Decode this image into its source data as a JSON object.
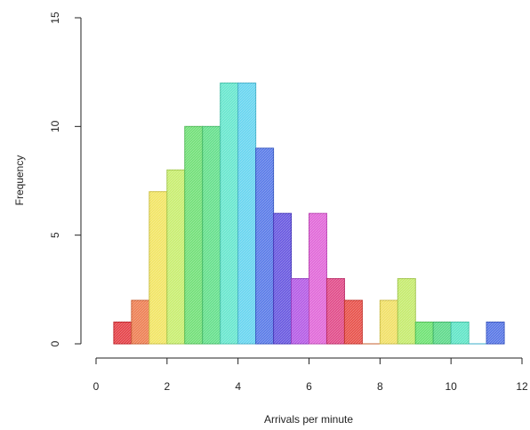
{
  "chart_data": {
    "type": "bar",
    "title": "",
    "xlabel": "Arrivals per minute",
    "ylabel": "Frequency",
    "xlim": [
      0,
      12
    ],
    "ylim": [
      0,
      15
    ],
    "x_ticks": [
      "0",
      "2",
      "4",
      "6",
      "8",
      "10",
      "12"
    ],
    "y_ticks": [
      "0",
      "5",
      "10",
      "15"
    ],
    "bin_width": 0.5,
    "bins": [
      {
        "start": 0.5,
        "end": 1.0,
        "count": 1,
        "color": "#E5454B"
      },
      {
        "start": 1.0,
        "end": 1.5,
        "count": 2,
        "color": "#EE8257"
      },
      {
        "start": 1.5,
        "end": 2.0,
        "count": 7,
        "color": "#F2E567"
      },
      {
        "start": 2.0,
        "end": 2.5,
        "count": 8,
        "color": "#C9EE72"
      },
      {
        "start": 2.5,
        "end": 3.0,
        "count": 10,
        "color": "#74E07A"
      },
      {
        "start": 3.0,
        "end": 3.5,
        "count": 10,
        "color": "#68E08E"
      },
      {
        "start": 3.5,
        "end": 4.0,
        "count": 12,
        "color": "#6AE7CF"
      },
      {
        "start": 4.0,
        "end": 4.5,
        "count": 12,
        "color": "#6AD6F0"
      },
      {
        "start": 4.5,
        "end": 5.0,
        "count": 9,
        "color": "#5C7DE8"
      },
      {
        "start": 5.0,
        "end": 5.5,
        "count": 6,
        "color": "#6B5BE0"
      },
      {
        "start": 5.5,
        "end": 6.0,
        "count": 3,
        "color": "#B65EE6"
      },
      {
        "start": 6.0,
        "end": 6.5,
        "count": 6,
        "color": "#E16AD9"
      },
      {
        "start": 6.5,
        "end": 7.0,
        "count": 3,
        "color": "#E14E8B"
      },
      {
        "start": 7.0,
        "end": 7.5,
        "count": 2,
        "color": "#E8544D"
      },
      {
        "start": 7.5,
        "end": 8.0,
        "count": 0,
        "color": "#EE8757"
      },
      {
        "start": 8.0,
        "end": 8.5,
        "count": 2,
        "color": "#F1E16A"
      },
      {
        "start": 8.5,
        "end": 9.0,
        "count": 3,
        "color": "#C6EB70"
      },
      {
        "start": 9.0,
        "end": 9.5,
        "count": 1,
        "color": "#71E376"
      },
      {
        "start": 9.5,
        "end": 10.0,
        "count": 1,
        "color": "#61DA8D"
      },
      {
        "start": 10.0,
        "end": 10.5,
        "count": 1,
        "color": "#63E5C8"
      },
      {
        "start": 10.5,
        "end": 11.0,
        "count": 0,
        "color": "#62D6F0"
      },
      {
        "start": 11.0,
        "end": 11.5,
        "count": 1,
        "color": "#5B79E6"
      }
    ]
  }
}
